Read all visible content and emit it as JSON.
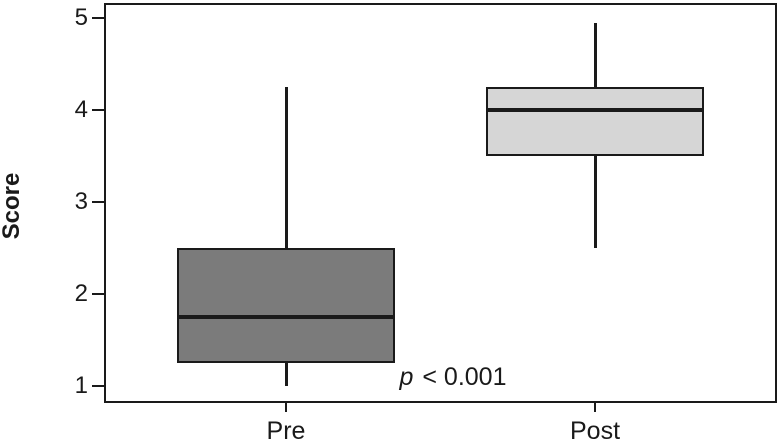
{
  "figure": {
    "background": "#ffffff",
    "line_color": "#1a1a1a"
  },
  "chart_data": {
    "type": "box",
    "title": "",
    "xlabel": "",
    "ylabel": "Score",
    "ylim": [
      1,
      5
    ],
    "yticks": [
      5,
      4,
      3,
      2,
      1
    ],
    "grid": false,
    "legend": "none",
    "categories": [
      "Pre",
      "Post"
    ],
    "series": [
      {
        "name": "Pre",
        "whisker_low": 1.0,
        "q1": 1.25,
        "median": 1.75,
        "q3": 2.5,
        "whisker_high": 4.25,
        "fill": "#7b7b7b"
      },
      {
        "name": "Post",
        "whisker_low": 2.5,
        "q1": 3.5,
        "median": 4.0,
        "q3": 4.25,
        "whisker_high": 4.95,
        "fill": "#d6d6d6"
      }
    ],
    "annotation": {
      "italic": "p",
      "rest": " < 0.001"
    }
  }
}
